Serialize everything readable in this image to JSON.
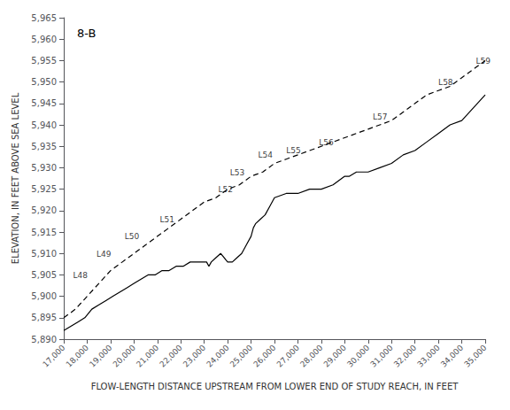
{
  "chart_data": {
    "type": "line",
    "title": "8-B",
    "xlabel": "FLOW-LENGTH DISTANCE UPSTREAM FROM LOWER END OF STUDY REACH, IN FEET",
    "ylabel": "ELEVATION, IN FEET ABOVE SEA LEVEL",
    "xlim": [
      17000,
      35000
    ],
    "ylim": [
      5890,
      5965
    ],
    "xticks": [
      {
        "value": 17000,
        "label": "17,000"
      },
      {
        "value": 18000,
        "label": "18,000"
      },
      {
        "value": 19000,
        "label": "19,000"
      },
      {
        "value": 20000,
        "label": "20,000"
      },
      {
        "value": 21000,
        "label": "21,000"
      },
      {
        "value": 22000,
        "label": "22,000"
      },
      {
        "value": 23000,
        "label": "23,000"
      },
      {
        "value": 24000,
        "label": "24,000"
      },
      {
        "value": 25000,
        "label": "25,000"
      },
      {
        "value": 26000,
        "label": "26,000"
      },
      {
        "value": 27000,
        "label": "27,000"
      },
      {
        "value": 28000,
        "label": "28,000"
      },
      {
        "value": 29000,
        "label": "29,000"
      },
      {
        "value": 30000,
        "label": "30,000"
      },
      {
        "value": 31000,
        "label": "31,000"
      },
      {
        "value": 32000,
        "label": "32,000"
      },
      {
        "value": 33000,
        "label": "33,000"
      },
      {
        "value": 34000,
        "label": "34,000"
      },
      {
        "value": 35000,
        "label": "35,000"
      }
    ],
    "yticks": [
      {
        "value": 5890,
        "label": "5,890"
      },
      {
        "value": 5895,
        "label": "5,895"
      },
      {
        "value": 5900,
        "label": "5,900"
      },
      {
        "value": 5905,
        "label": "5,905"
      },
      {
        "value": 5910,
        "label": "5,910"
      },
      {
        "value": 5915,
        "label": "5,915"
      },
      {
        "value": 5920,
        "label": "5,920"
      },
      {
        "value": 5925,
        "label": "5,925"
      },
      {
        "value": 5930,
        "label": "5,930"
      },
      {
        "value": 5935,
        "label": "5,935"
      },
      {
        "value": 5940,
        "label": "5,940"
      },
      {
        "value": 5945,
        "label": "5,945"
      },
      {
        "value": 5950,
        "label": "5,950"
      },
      {
        "value": 5955,
        "label": "5,955"
      },
      {
        "value": 5960,
        "label": "5,960"
      },
      {
        "value": 5965,
        "label": "5,965"
      }
    ],
    "grid": false,
    "series": [
      {
        "color": "#000000",
        "line_style": "solid",
        "x": [
          17000,
          17300,
          17600,
          17900,
          18200,
          18500,
          18800,
          19100,
          19400,
          19700,
          20000,
          20300,
          20600,
          20900,
          21200,
          21500,
          21800,
          22100,
          22400,
          22700,
          23000,
          23100,
          23200,
          23300,
          23500,
          23700,
          24000,
          24200,
          24400,
          24600,
          24800,
          25000,
          25100,
          25200,
          25400,
          25600,
          25800,
          26000,
          26500,
          27000,
          27500,
          28000,
          28500,
          29000,
          29200,
          29500,
          30000,
          30500,
          31000,
          31500,
          32000,
          32500,
          33000,
          33500,
          34000,
          34500,
          35000
        ],
        "values": [
          5892,
          5893,
          5894,
          5895,
          5897,
          5898,
          5899,
          5900,
          5901,
          5902,
          5903,
          5904,
          5905,
          5905,
          5906,
          5906,
          5907,
          5907,
          5908,
          5908,
          5908,
          5908,
          5907,
          5908,
          5909,
          5910,
          5908,
          5908,
          5909,
          5910,
          5912,
          5914,
          5916,
          5917,
          5918,
          5919,
          5921,
          5923,
          5924,
          5924,
          5925,
          5925,
          5926,
          5928,
          5928,
          5929,
          5929,
          5930,
          5931,
          5933,
          5934,
          5936,
          5938,
          5940,
          5941,
          5944,
          5947
        ]
      },
      {
        "color": "#000000",
        "line_style": "dashed",
        "x": [
          17000,
          17500,
          18000,
          18500,
          19000,
          19500,
          20000,
          20500,
          21000,
          21500,
          22000,
          22500,
          23000,
          23500,
          24000,
          24500,
          25000,
          25500,
          26000,
          26500,
          27000,
          27500,
          28000,
          28500,
          29000,
          29500,
          30000,
          30500,
          31000,
          31500,
          32000,
          32500,
          33000,
          33500,
          34000,
          34500,
          35000
        ],
        "values": [
          5895,
          5897,
          5900,
          5903,
          5906,
          5908,
          5910,
          5912,
          5914,
          5916,
          5918,
          5920,
          5922,
          5923,
          5925,
          5926,
          5928,
          5929,
          5931,
          5932,
          5933,
          5934,
          5935,
          5936,
          5937,
          5938,
          5939,
          5940,
          5941,
          5943,
          5945,
          5947,
          5948,
          5949,
          5951,
          5953,
          5955
        ]
      }
    ],
    "annotations": [
      {
        "text": "L48",
        "x": 17400,
        "y": 5904
      },
      {
        "text": "L49",
        "x": 18400,
        "y": 5909
      },
      {
        "text": "L50",
        "x": 19600,
        "y": 5913
      },
      {
        "text": "L51",
        "x": 21100,
        "y": 5917
      },
      {
        "text": "L52",
        "x": 23600,
        "y": 5924
      },
      {
        "text": "L53",
        "x": 24100,
        "y": 5928
      },
      {
        "text": "L54",
        "x": 25300,
        "y": 5932
      },
      {
        "text": "L55",
        "x": 26500,
        "y": 5933
      },
      {
        "text": "L56",
        "x": 27900,
        "y": 5935
      },
      {
        "text": "L57",
        "x": 30200,
        "y": 5941
      },
      {
        "text": "L58",
        "x": 33000,
        "y": 5949
      },
      {
        "text": "L59",
        "x": 34600,
        "y": 5954
      }
    ]
  }
}
